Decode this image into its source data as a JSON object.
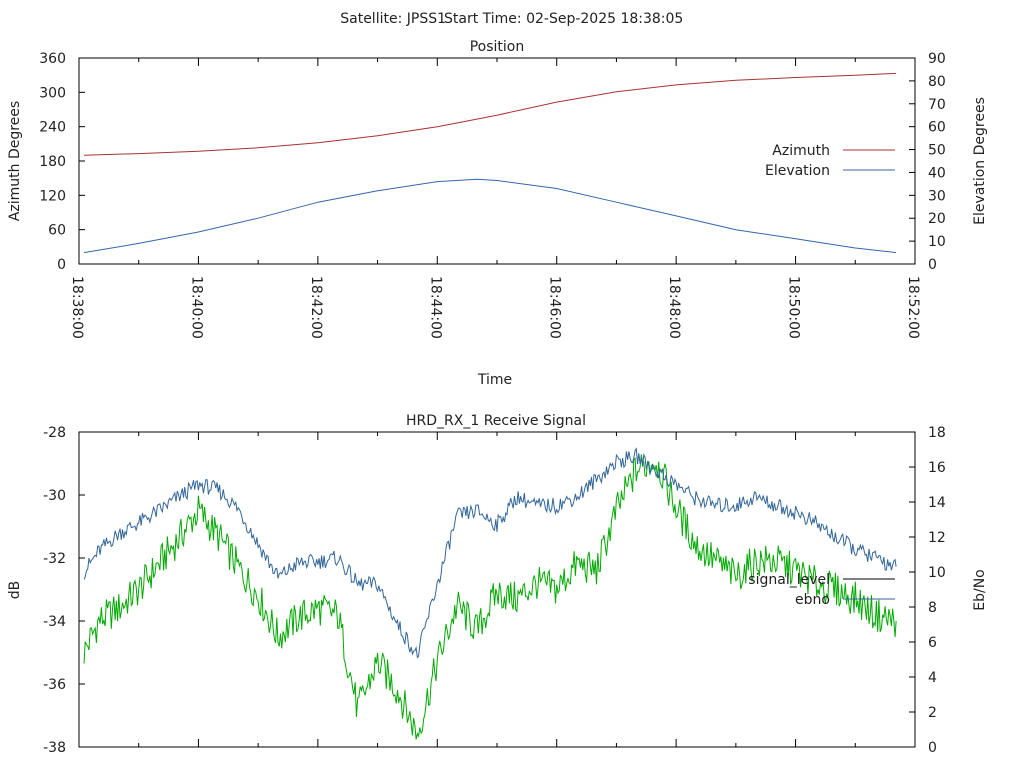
{
  "header": {
    "satellite": "Satellite: JPSS1",
    "start_time": "Start Time: 02-Sep-2025 18:38:05"
  },
  "chart_data": [
    {
      "type": "line",
      "title": "Position",
      "xlabel": "Time",
      "ylabel": "Azimuth Degrees",
      "y2label": "Elevation Degrees",
      "x_ticks": [
        "18:38:00",
        "18:40:00",
        "18:42:00",
        "18:44:00",
        "18:46:00",
        "18:48:00",
        "18:50:00",
        "18:52:00"
      ],
      "xlim_seconds_from_tick0": [
        0,
        840
      ],
      "ylim": [
        0,
        360
      ],
      "y_ticks": [
        "0",
        "60",
        "120",
        "180",
        "240",
        "300",
        "360"
      ],
      "y2lim": [
        0,
        90
      ],
      "y2_ticks": [
        "0",
        "10",
        "20",
        "30",
        "40",
        "50",
        "60",
        "70",
        "80",
        "90"
      ],
      "legend_position": "right",
      "series": [
        {
          "name": "Azimuth",
          "axis": "y",
          "color": "#a83232",
          "x_seconds": [
            5,
            60,
            120,
            180,
            240,
            300,
            360,
            420,
            480,
            540,
            600,
            660,
            720,
            780,
            821
          ],
          "values": [
            190,
            193,
            197,
            203,
            212,
            224,
            240,
            260,
            283,
            301,
            313,
            321,
            326,
            330,
            333
          ]
        },
        {
          "name": "Elevation",
          "axis": "y2",
          "color": "#3366aa",
          "x_seconds": [
            5,
            60,
            120,
            180,
            240,
            300,
            360,
            400,
            420,
            480,
            540,
            600,
            660,
            720,
            780,
            821
          ],
          "values": [
            5,
            9,
            14,
            20,
            27,
            32,
            36,
            37,
            36.5,
            33,
            27,
            21,
            15,
            11,
            7,
            5
          ]
        }
      ]
    },
    {
      "type": "line",
      "title": "HRD_RX_1 Receive Signal",
      "ylabel": "dB",
      "y2label": "Eb/No",
      "ylim": [
        -38,
        -28
      ],
      "y_ticks": [
        "-28",
        "-30",
        "-32",
        "-34",
        "-36",
        "-38"
      ],
      "y2lim": [
        0,
        18
      ],
      "y2_ticks": [
        "0",
        "2",
        "4",
        "6",
        "8",
        "10",
        "12",
        "14",
        "16",
        "18"
      ],
      "legend_position": "right",
      "series": [
        {
          "name": "signal_level",
          "axis": "y",
          "color": "#00aa00",
          "legend_color": "#000000",
          "x_seconds": [
            5,
            20,
            40,
            60,
            80,
            100,
            120,
            140,
            160,
            180,
            200,
            220,
            240,
            260,
            280,
            300,
            320,
            340,
            360,
            380,
            400,
            420,
            440,
            460,
            480,
            500,
            520,
            540,
            560,
            580,
            600,
            620,
            640,
            660,
            680,
            700,
            720,
            740,
            760,
            780,
            800,
            821
          ],
          "values": [
            -35,
            -34,
            -33.6,
            -33,
            -32.2,
            -31.4,
            -30.5,
            -31.3,
            -32.3,
            -33.2,
            -34.5,
            -33.9,
            -33.6,
            -33.8,
            -36.8,
            -35.3,
            -36.2,
            -37.6,
            -35.3,
            -33.5,
            -34.3,
            -33.1,
            -33.3,
            -32.8,
            -33.0,
            -32.2,
            -32.4,
            -30.5,
            -29.2,
            -28.9,
            -30.4,
            -31.6,
            -32.1,
            -32.6,
            -32.1,
            -32.1,
            -32.4,
            -32.8,
            -33.0,
            -33.3,
            -33.8,
            -34.0
          ]
        },
        {
          "name": "ebno",
          "axis": "y2",
          "color": "#336699",
          "x_seconds": [
            5,
            20,
            40,
            60,
            80,
            100,
            120,
            140,
            160,
            180,
            200,
            220,
            240,
            260,
            280,
            300,
            320,
            340,
            360,
            380,
            400,
            420,
            440,
            460,
            480,
            500,
            520,
            540,
            560,
            580,
            600,
            620,
            640,
            660,
            680,
            700,
            720,
            740,
            760,
            780,
            800,
            821
          ],
          "values": [
            10,
            11.2,
            12.2,
            12.8,
            13.5,
            14.3,
            15.0,
            14.7,
            13.6,
            11.6,
            9.7,
            10.5,
            10.6,
            10.8,
            9.3,
            9.3,
            7.0,
            5.2,
            9.3,
            13.2,
            13.5,
            12.7,
            14.3,
            13.8,
            13.8,
            14.3,
            15.3,
            16.3,
            16.6,
            15.8,
            15.0,
            14.2,
            13.8,
            13.8,
            14.3,
            13.8,
            13.4,
            12.8,
            12.0,
            11.3,
            10.8,
            10.3
          ]
        }
      ]
    }
  ]
}
